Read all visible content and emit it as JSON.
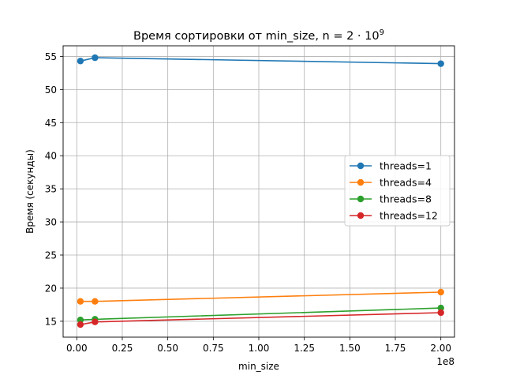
{
  "chart_data": {
    "type": "line",
    "title": "Время сортировки от min_size, n = 2 · 10",
    "title_exponent": "9",
    "xlabel": "min_size",
    "ylabel": "Время (секунды)",
    "x_offset_label": "1e8",
    "x_scale": 100000000,
    "xlim": [
      -7500000,
      207500000
    ],
    "ylim": [
      12.6,
      56.6
    ],
    "x_ticks": [
      0,
      25000000,
      50000000,
      75000000,
      100000000,
      125000000,
      150000000,
      175000000,
      200000000
    ],
    "x_tick_labels": [
      "0.00",
      "0.25",
      "0.50",
      "0.75",
      "1.00",
      "1.25",
      "1.50",
      "1.75",
      "2.00"
    ],
    "y_ticks": [
      15,
      20,
      25,
      30,
      35,
      40,
      45,
      50,
      55
    ],
    "y_tick_labels": [
      "15",
      "20",
      "25",
      "30",
      "35",
      "40",
      "45",
      "50",
      "55"
    ],
    "grid": true,
    "legend_position": "center-right",
    "x": [
      2000000,
      10000000,
      200000000
    ],
    "series": [
      {
        "name": "threads=1",
        "color": "#1f77b4",
        "values": [
          54.3,
          54.8,
          53.9
        ]
      },
      {
        "name": "threads=4",
        "color": "#ff7f0e",
        "values": [
          18.0,
          18.0,
          19.4
        ]
      },
      {
        "name": "threads=8",
        "color": "#2ca02c",
        "values": [
          15.2,
          15.3,
          17.0
        ]
      },
      {
        "name": "threads=12",
        "color": "#d62728",
        "values": [
          14.5,
          14.9,
          16.3
        ]
      }
    ]
  }
}
